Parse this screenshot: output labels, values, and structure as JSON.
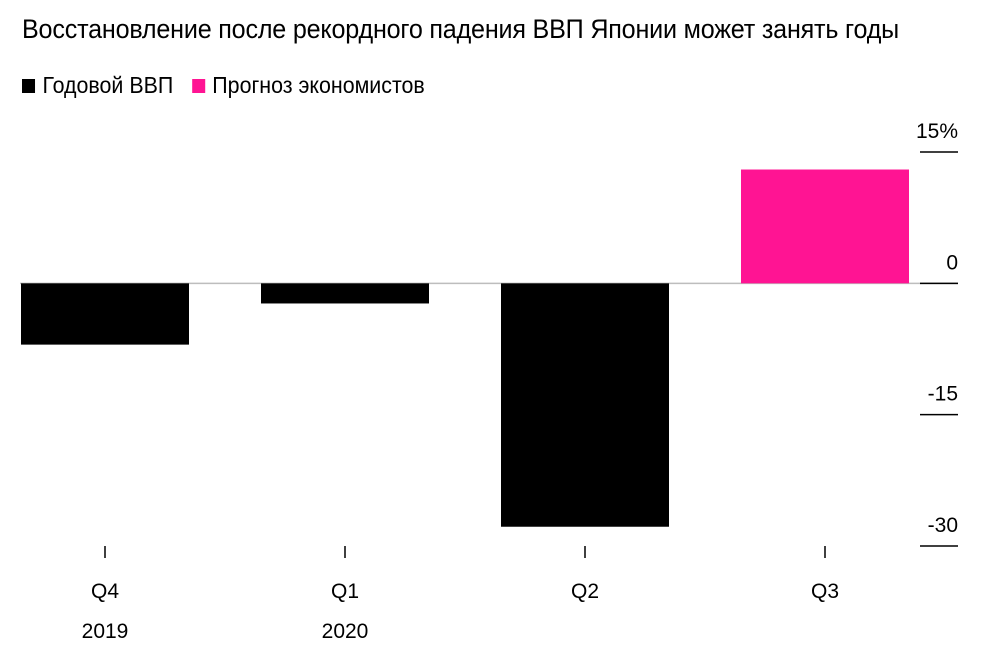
{
  "title": "Восстановление после рекордного падения ВВП Японии может занять годы",
  "legend": [
    {
      "label": "Годовой ВВП",
      "color": "#000000"
    },
    {
      "label": "Прогноз экономистов",
      "color": "#ff1493"
    }
  ],
  "chart_data": {
    "type": "bar",
    "title": "Восстановление после рекордного падения ВВП Японии может занять годы",
    "categories": [
      "Q4\n2019",
      "Q1\n2020",
      "Q2",
      "Q3"
    ],
    "tick_labels": [
      {
        "quarter": "Q4",
        "year": "2019"
      },
      {
        "quarter": "Q1",
        "year": "2020"
      },
      {
        "quarter": "Q2",
        "year": ""
      },
      {
        "quarter": "Q3",
        "year": ""
      }
    ],
    "series": [
      {
        "name": "Годовой ВВП",
        "color": "#000000",
        "values": [
          -7,
          -2.3,
          -27.8,
          null
        ]
      },
      {
        "name": "Прогноз экономистов",
        "color": "#ff1493",
        "values": [
          null,
          null,
          null,
          13
        ]
      }
    ],
    "ylim": [
      -30,
      15
    ],
    "yticks": [
      {
        "value": 15,
        "label": "15%"
      },
      {
        "value": 0,
        "label": "0"
      },
      {
        "value": -15,
        "label": "-15"
      },
      {
        "value": -30,
        "label": "-30"
      }
    ],
    "xlabel": "",
    "ylabel": "",
    "legend_position": "top-left",
    "axis_position": "right",
    "grid": false
  }
}
